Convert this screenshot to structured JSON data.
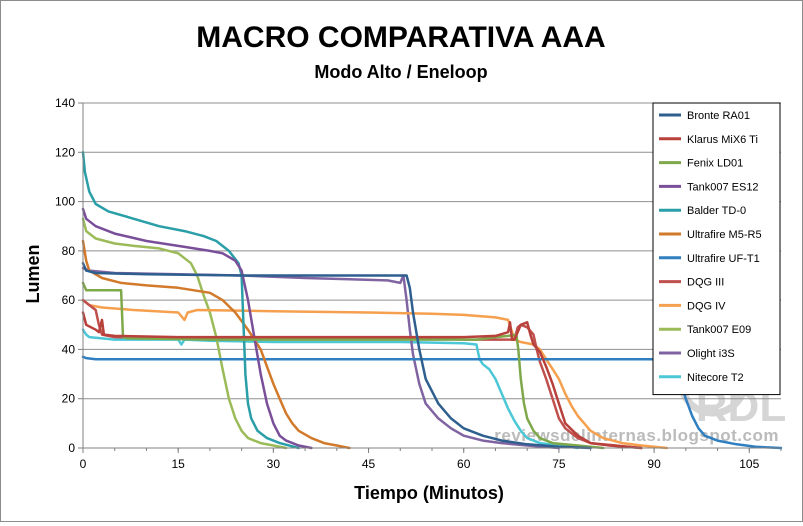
{
  "chart_data": {
    "type": "line",
    "title": "MACRO COMPARATIVA  AAA",
    "subtitle": "Modo Alto / Eneloop",
    "xlabel": "Tiempo (Minutos)",
    "ylabel": "Lumen",
    "xlim": [
      0,
      110
    ],
    "ylim": [
      0,
      140
    ],
    "x_ticks": [
      0,
      15,
      30,
      45,
      60,
      75,
      90,
      105
    ],
    "y_ticks": [
      0,
      20,
      40,
      60,
      80,
      100,
      120,
      140
    ],
    "grid": "horizontal",
    "legend_position": "right",
    "watermark": "reviewsdelinternas.blogspot.com",
    "logo_text": "RDL",
    "series": [
      {
        "name": "Bronte RA01",
        "color": "#2e5f8f",
        "points": [
          [
            0,
            75
          ],
          [
            0.5,
            72
          ],
          [
            2,
            71
          ],
          [
            10,
            70.5
          ],
          [
            25,
            70
          ],
          [
            40,
            70
          ],
          [
            51,
            70
          ],
          [
            51.5,
            65
          ],
          [
            52,
            55
          ],
          [
            53,
            40
          ],
          [
            54,
            28
          ],
          [
            56,
            18
          ],
          [
            58,
            12
          ],
          [
            60,
            8
          ],
          [
            63,
            5
          ],
          [
            66,
            3
          ],
          [
            70,
            1.5
          ],
          [
            75,
            0.5
          ],
          [
            80,
            0
          ]
        ]
      },
      {
        "name": "Klarus MiX6 Ti",
        "color": "#b8413c",
        "points": [
          [
            0,
            55
          ],
          [
            0.5,
            50
          ],
          [
            2,
            48
          ],
          [
            2.5,
            47
          ],
          [
            3,
            52
          ],
          [
            3.3,
            46
          ],
          [
            5,
            45.5
          ],
          [
            15,
            45
          ],
          [
            30,
            45
          ],
          [
            45,
            45
          ],
          [
            60,
            45
          ],
          [
            65,
            45.5
          ],
          [
            67,
            47
          ],
          [
            67.3,
            51
          ],
          [
            67.6,
            44
          ],
          [
            68,
            44
          ],
          [
            69,
            50
          ],
          [
            70,
            51
          ],
          [
            70.5,
            46
          ],
          [
            71,
            42
          ],
          [
            72,
            39
          ],
          [
            73,
            33
          ],
          [
            74,
            26
          ],
          [
            75,
            18
          ],
          [
            76,
            10
          ],
          [
            78,
            5
          ],
          [
            80,
            2
          ],
          [
            83,
            1
          ],
          [
            88,
            0
          ]
        ]
      },
      {
        "name": "Fenix LD01",
        "color": "#7fa84b",
        "points": [
          [
            0,
            67
          ],
          [
            0.5,
            64
          ],
          [
            6,
            64
          ],
          [
            6.3,
            45
          ],
          [
            7,
            44.5
          ],
          [
            20,
            44
          ],
          [
            40,
            44
          ],
          [
            55,
            44
          ],
          [
            62,
            44
          ],
          [
            65,
            45
          ],
          [
            67,
            45.5
          ],
          [
            68.3,
            46
          ],
          [
            68.6,
            40
          ],
          [
            69,
            28
          ],
          [
            69.5,
            18
          ],
          [
            70,
            12
          ],
          [
            71,
            7
          ],
          [
            72,
            4
          ],
          [
            74,
            2
          ],
          [
            78,
            1
          ],
          [
            82,
            0
          ]
        ]
      },
      {
        "name": "Tank007 ES12",
        "color": "#7a4f9a",
        "points": [
          [
            0,
            97
          ],
          [
            0.5,
            93
          ],
          [
            2,
            90
          ],
          [
            5,
            87
          ],
          [
            10,
            84
          ],
          [
            15,
            82
          ],
          [
            20,
            80
          ],
          [
            22,
            79
          ],
          [
            24,
            76
          ],
          [
            25,
            72
          ],
          [
            26,
            60
          ],
          [
            27,
            45
          ],
          [
            28,
            30
          ],
          [
            29,
            18
          ],
          [
            30,
            10
          ],
          [
            31,
            5
          ],
          [
            32,
            3
          ],
          [
            34,
            1
          ],
          [
            36,
            0
          ]
        ]
      },
      {
        "name": "Balder TD-0",
        "color": "#2a9fa8",
        "points": [
          [
            0,
            120
          ],
          [
            0.3,
            112
          ],
          [
            1,
            104
          ],
          [
            2,
            99
          ],
          [
            4,
            96
          ],
          [
            8,
            93
          ],
          [
            12,
            90
          ],
          [
            16,
            88
          ],
          [
            19,
            86
          ],
          [
            21,
            84
          ],
          [
            23,
            80
          ],
          [
            24.5,
            75
          ],
          [
            25,
            70
          ],
          [
            25.3,
            50
          ],
          [
            25.6,
            30
          ],
          [
            26,
            18
          ],
          [
            26.5,
            12
          ],
          [
            27.5,
            7
          ],
          [
            29,
            4
          ],
          [
            31,
            2
          ],
          [
            34,
            0
          ]
        ]
      },
      {
        "name": "Ultrafire M5-R5",
        "color": "#d27a2b",
        "points": [
          [
            0,
            84
          ],
          [
            0.5,
            76
          ],
          [
            1,
            72
          ],
          [
            3,
            69
          ],
          [
            6,
            67
          ],
          [
            10,
            66
          ],
          [
            15,
            65
          ],
          [
            20,
            63
          ],
          [
            22,
            60
          ],
          [
            24,
            55
          ],
          [
            26,
            48
          ],
          [
            28,
            40
          ],
          [
            29,
            33
          ],
          [
            30,
            26
          ],
          [
            31,
            20
          ],
          [
            32,
            14
          ],
          [
            33,
            10
          ],
          [
            34,
            7
          ],
          [
            36,
            4
          ],
          [
            38,
            2
          ],
          [
            40,
            1
          ],
          [
            42,
            0
          ]
        ]
      },
      {
        "name": "Ultrafire UF-T1",
        "color": "#2f7fc1",
        "points": [
          [
            0,
            37
          ],
          [
            0.5,
            36.5
          ],
          [
            2,
            36
          ],
          [
            30,
            36
          ],
          [
            60,
            36
          ],
          [
            80,
            36
          ],
          [
            93,
            36
          ],
          [
            93.5,
            33
          ],
          [
            94,
            28
          ],
          [
            95,
            20
          ],
          [
            96,
            13
          ],
          [
            97,
            8
          ],
          [
            98,
            5
          ],
          [
            100,
            3
          ],
          [
            103,
            1.5
          ],
          [
            106,
            0.5
          ],
          [
            110,
            0
          ]
        ]
      },
      {
        "name": "DQG III",
        "color": "#c0504d",
        "points": [
          [
            0,
            60
          ],
          [
            1,
            58
          ],
          [
            2,
            56
          ],
          [
            2.5,
            50
          ],
          [
            3,
            46
          ],
          [
            5,
            45
          ],
          [
            15,
            44.5
          ],
          [
            30,
            44.5
          ],
          [
            45,
            44.5
          ],
          [
            55,
            44.5
          ],
          [
            60,
            44
          ],
          [
            65,
            44
          ],
          [
            67,
            44
          ],
          [
            68,
            44
          ],
          [
            68.5,
            49
          ],
          [
            69,
            50
          ],
          [
            70,
            49
          ],
          [
            71,
            46
          ],
          [
            71.5,
            40
          ],
          [
            72,
            35
          ],
          [
            73,
            28
          ],
          [
            74,
            20
          ],
          [
            75,
            12
          ],
          [
            76,
            8
          ],
          [
            78,
            4
          ],
          [
            80,
            2
          ],
          [
            84,
            1
          ],
          [
            88,
            0
          ]
        ]
      },
      {
        "name": "DQG IV",
        "color": "#f5a04e",
        "points": [
          [
            0,
            60
          ],
          [
            0.5,
            59
          ],
          [
            1,
            58
          ],
          [
            3,
            57
          ],
          [
            8,
            56
          ],
          [
            15,
            55
          ],
          [
            16,
            52
          ],
          [
            16.5,
            55
          ],
          [
            18,
            56
          ],
          [
            30,
            55.5
          ],
          [
            45,
            55
          ],
          [
            55,
            54.5
          ],
          [
            60,
            54
          ],
          [
            65,
            53
          ],
          [
            67,
            52
          ],
          [
            67.5,
            48
          ],
          [
            68,
            44
          ],
          [
            69,
            43
          ],
          [
            71,
            42
          ],
          [
            72,
            40
          ],
          [
            73,
            36
          ],
          [
            74,
            32
          ],
          [
            75,
            28
          ],
          [
            76,
            22
          ],
          [
            77,
            17
          ],
          [
            78,
            13
          ],
          [
            79,
            10
          ],
          [
            80,
            7
          ],
          [
            82,
            4
          ],
          [
            85,
            2
          ],
          [
            88,
            1
          ],
          [
            92,
            0
          ]
        ]
      },
      {
        "name": "Tank007 E09",
        "color": "#9bbb59",
        "points": [
          [
            0,
            93
          ],
          [
            0.5,
            88
          ],
          [
            2,
            85
          ],
          [
            5,
            83
          ],
          [
            8,
            82
          ],
          [
            12,
            81
          ],
          [
            15,
            79
          ],
          [
            17,
            75
          ],
          [
            18,
            70
          ],
          [
            19,
            62
          ],
          [
            20,
            55
          ],
          [
            21,
            45
          ],
          [
            22,
            32
          ],
          [
            23,
            20
          ],
          [
            24,
            12
          ],
          [
            25,
            7
          ],
          [
            26,
            4
          ],
          [
            28,
            2
          ],
          [
            30,
            1
          ],
          [
            32,
            0
          ]
        ]
      },
      {
        "name": "Olight i3S",
        "color": "#8064a2",
        "points": [
          [
            0,
            73
          ],
          [
            1,
            72
          ],
          [
            5,
            71
          ],
          [
            15,
            70.5
          ],
          [
            25,
            70
          ],
          [
            35,
            69
          ],
          [
            42,
            68.5
          ],
          [
            48,
            68
          ],
          [
            50,
            67
          ],
          [
            50.5,
            70
          ],
          [
            51,
            60
          ],
          [
            51.5,
            48
          ],
          [
            52,
            38
          ],
          [
            53,
            26
          ],
          [
            54,
            18
          ],
          [
            56,
            12
          ],
          [
            58,
            8
          ],
          [
            60,
            5
          ],
          [
            63,
            3
          ],
          [
            66,
            2
          ],
          [
            70,
            1
          ],
          [
            75,
            0
          ]
        ]
      },
      {
        "name": "Nitecore T2",
        "color": "#4bc7d6",
        "points": [
          [
            0,
            48
          ],
          [
            0.5,
            46
          ],
          [
            1,
            45
          ],
          [
            5,
            44
          ],
          [
            15,
            44
          ],
          [
            15.5,
            42
          ],
          [
            16,
            44
          ],
          [
            20,
            43.5
          ],
          [
            30,
            43
          ],
          [
            40,
            43
          ],
          [
            50,
            43
          ],
          [
            60,
            42.5
          ],
          [
            62,
            42
          ],
          [
            62.5,
            36
          ],
          [
            63,
            34
          ],
          [
            64,
            32
          ],
          [
            65,
            28
          ],
          [
            66,
            22
          ],
          [
            67,
            16
          ],
          [
            68,
            11
          ],
          [
            69,
            7
          ],
          [
            70,
            4
          ],
          [
            72,
            2
          ],
          [
            75,
            1
          ],
          [
            78,
            0
          ]
        ]
      }
    ]
  }
}
